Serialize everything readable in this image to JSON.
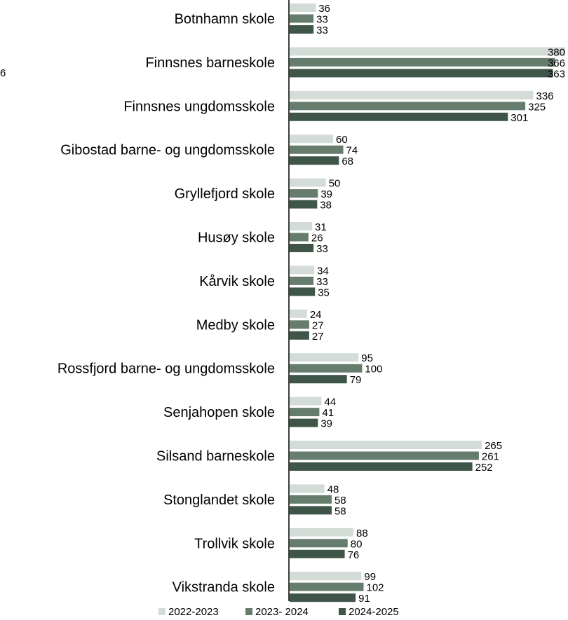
{
  "chart_data": {
    "type": "bar",
    "orientation": "horizontal",
    "categories": [
      "Botnhamn skole",
      "Finnsnes barneskole",
      "Finnsnes ungdomsskole",
      "Gibostad barne- og ungdomsskole",
      "Gryllefjord skole",
      "Husøy skole",
      "Kårvik skole",
      "Medby skole",
      "Rossfjord barne- og ungdomsskole",
      "Senjahopen skole",
      "Silsand barneskole",
      "Stonglandet skole",
      "Trollvik skole",
      "Vikstranda skole"
    ],
    "series": [
      {
        "name": "2022-2023",
        "color": "#d3dcd6",
        "values": [
          36,
          380,
          336,
          60,
          50,
          31,
          34,
          24,
          95,
          44,
          265,
          48,
          88,
          99
        ]
      },
      {
        "name": "2023- 2024",
        "color": "#667d6d",
        "values": [
          33,
          366,
          325,
          74,
          39,
          26,
          33,
          27,
          100,
          41,
          261,
          58,
          80,
          102
        ]
      },
      {
        "name": "2024-2025",
        "color": "#3f5548",
        "values": [
          33,
          363,
          301,
          68,
          38,
          33,
          35,
          27,
          79,
          39,
          252,
          58,
          76,
          91
        ]
      }
    ],
    "xlim": [
      0,
      380
    ],
    "legend_position": "bottom",
    "data_labels": true,
    "grid": false
  },
  "stray_text": "6"
}
